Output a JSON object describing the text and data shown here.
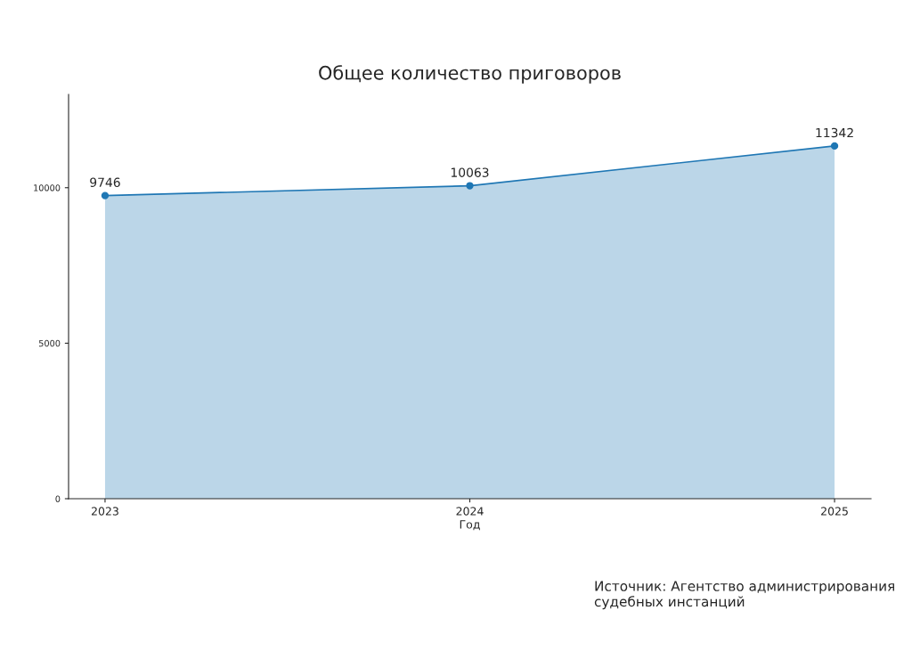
{
  "chart_data": {
    "type": "area",
    "title": "Общее количество приговоров",
    "xlabel": "Год",
    "categories": [
      "2023",
      "2024",
      "2025"
    ],
    "series": [
      {
        "color": "#1f77b4",
        "values": [
          9746,
          10063,
          11342
        ]
      }
    ],
    "ylim": [
      0,
      13000
    ],
    "yticks": [
      0,
      5000,
      10000
    ],
    "data_labels": true,
    "marker": "circle",
    "grid": false,
    "legend": false,
    "annotations": [
      "Источник: Агентство администрирования судебных инстанций"
    ]
  }
}
